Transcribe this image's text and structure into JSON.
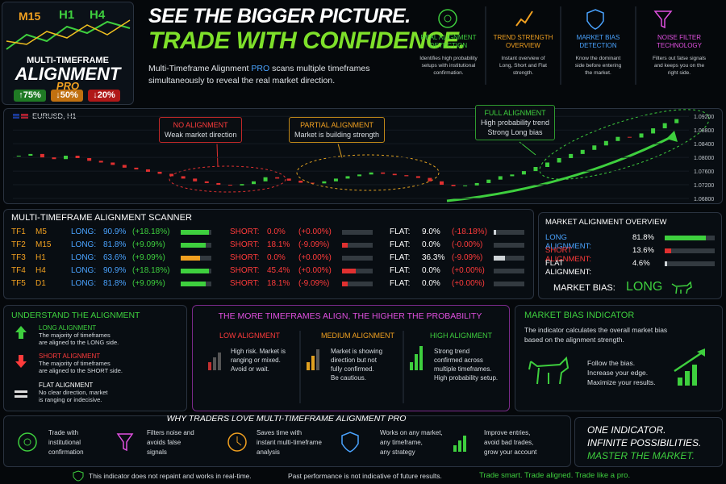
{
  "logo": {
    "timeframes": [
      "M15",
      "H1",
      "H4"
    ],
    "title1": "MULTI-TIMEFRAME",
    "title2": "ALIGNMENT",
    "title3": "PRO",
    "stats": [
      "75%",
      "50%",
      "20%"
    ]
  },
  "headline": {
    "line1": "SEE THE BIGGER PICTURE.",
    "line2": "TRADE WITH CONFIDENCE.",
    "desc": [
      [
        "Multi-Timeframe Alignment ",
        "PRO",
        " scans multiple timeframes"
      ],
      "simultaneously to reveal the real market direction."
    ]
  },
  "features": [
    {
      "title": [
        "REAL ALIGNMENT",
        "DETECTION"
      ],
      "text": [
        "Identifies high probability",
        "setups with institutional",
        "confirmation."
      ]
    },
    {
      "title": [
        "TREND STRENGTH",
        "OVERVIEW"
      ],
      "text": [
        "Instant overview of",
        "Long, Short and Flat",
        "strength."
      ]
    },
    {
      "title": [
        "MARKET BIAS",
        "DETECTION"
      ],
      "text": [
        "Know the dominant",
        "side before entering",
        "the market."
      ]
    },
    {
      "title": [
        "NOISE FILTER",
        "TECHNOLOGY"
      ],
      "text": [
        "Filters out false signals",
        "and keeps you on the",
        "right side."
      ]
    }
  ],
  "price_chart": {
    "symbol": "EURUSD, H1",
    "ylim": [
      1.068,
      1.093
    ],
    "yticks": [
      {
        "value": 1.092,
        "label": "1.09200"
      },
      {
        "value": 1.088,
        "label": "1.08800"
      },
      {
        "value": 1.084,
        "label": "1.08400"
      },
      {
        "value": 1.08,
        "label": "1.08000"
      },
      {
        "value": 1.076,
        "label": "1.07600"
      },
      {
        "value": 1.072,
        "label": "1.07200"
      },
      {
        "value": 1.068,
        "label": "1.06800"
      }
    ],
    "closes": [
      1.0805,
      1.081,
      1.08,
      1.0795,
      1.0805,
      1.0798,
      1.079,
      1.0785,
      1.0778,
      1.077,
      1.0765,
      1.0758,
      1.0752,
      1.0745,
      1.0738,
      1.073,
      1.0725,
      1.072,
      1.0718,
      1.0722,
      1.073,
      1.0742,
      1.0738,
      1.0732,
      1.0726,
      1.0724,
      1.073,
      1.0738,
      1.0745,
      1.075,
      1.0756,
      1.0752,
      1.0748,
      1.0745,
      1.074,
      1.073,
      1.072,
      1.0716,
      1.0718,
      1.0725,
      1.0735,
      1.0745,
      1.075,
      1.076,
      1.0772,
      1.0785,
      1.0798,
      1.081,
      1.0822,
      1.0835,
      1.0848,
      1.086,
      1.0858,
      1.087,
      1.0885,
      1.09,
      1.0912
    ],
    "annotations": [
      {
        "title": "NO ALIGNMENT",
        "text": [
          "Weak market direction"
        ]
      },
      {
        "title": "PARTIAL ALIGNMENT",
        "text": [
          "Market is building strength"
        ]
      },
      {
        "title": "FULL ALIGNMENT",
        "text": [
          "High probability trend",
          "Strong Long bias"
        ]
      }
    ]
  },
  "scanner": {
    "title": "MULTI-TIMEFRAME ALIGNMENT SCANNER",
    "headers": [
      "LONG:",
      "SHORT:",
      "FLAT:"
    ],
    "rows": [
      [
        "TF1",
        "M5",
        "90.9%",
        "(+18.18%)",
        "0.0%",
        "(+0.00%)",
        "9.0%",
        "(-18.18%)"
      ],
      [
        "TF2",
        "M15",
        "81.8%",
        "(+9.09%)",
        "18.1%",
        "(-9.09%)",
        "0.0%",
        "(-0.00%)"
      ],
      [
        "TF3",
        "H1",
        "63.6%",
        "(+9.09%)",
        "0.0%",
        "(+0.00%)",
        "36.3%",
        "(-9.09%)"
      ],
      [
        "TF4",
        "H4",
        "90.9%",
        "(+18.18%)",
        "45.4%",
        "(+0.00%)",
        "0.0%",
        "(+0.00%)"
      ],
      [
        "TF5",
        "D1",
        "81.8%",
        "(+9.09%)",
        "18.1%",
        "(-9.09%)",
        "0.0%",
        "(+0.00%)"
      ]
    ]
  },
  "overview": {
    "title": "MARKET ALIGNMENT OVERVIEW",
    "rows": [
      [
        "LONG ALIGNMENT:",
        "81.8%"
      ],
      [
        "SHORT ALIGNMENT:",
        "13.6%"
      ],
      [
        "FLAT ALIGNMENT:",
        "4.6%"
      ]
    ],
    "bias_label": "MARKET BIAS:",
    "bias": "LONG"
  },
  "understand": {
    "title": "UNDERSTAND THE ALIGNMENT",
    "items": [
      {
        "title": "LONG ALIGNMENT",
        "text": [
          "The majority of timeframes",
          "are aligned to the LONG side."
        ]
      },
      {
        "title": "SHORT ALIGNMENT",
        "text": [
          "The majority of timeframes",
          "are aligned to the SHORT side."
        ]
      },
      {
        "title": "FLAT ALIGNMENT",
        "text": [
          "No clear direction, market",
          "is ranging or indecisive."
        ]
      }
    ]
  },
  "probability": {
    "title": "THE MORE TIMEFRAMES ALIGN, THE HIGHER THE PROBABILITY",
    "items": [
      {
        "title": "LOW ALIGNMENT",
        "text": [
          "High risk. Market is",
          "ranging or mixed.",
          "Avoid or wait."
        ]
      },
      {
        "title": "MEDIUM ALIGNMENT",
        "text": [
          "Market is showing",
          "direction but not",
          "fully confirmed.",
          "Be cautious."
        ]
      },
      {
        "title": "HIGH ALIGNMENT",
        "text": [
          "Strong trend",
          "confirmed across",
          "multiple timeframes.",
          "High probability setup."
        ]
      }
    ]
  },
  "bias_indicator": {
    "title": "MARKET BIAS INDICATOR",
    "text": [
      "The indicator calculates the overall market bias",
      "based on the alignment strength."
    ],
    "lines": [
      "Follow the bias.",
      "Increase your edge.",
      "Maximize your results."
    ]
  },
  "why": {
    "title": "WHY TRADERS LOVE MULTI-TIMEFRAME ALIGNMENT PRO",
    "items": [
      [
        "Trade with",
        "institutional",
        "confirmation"
      ],
      [
        "Filters noise and",
        "avoids false",
        "signals"
      ],
      [
        "Saves time with",
        "instant multi-timeframe",
        "analysis"
      ],
      [
        "Works on any market,",
        "any timeframe,",
        "any strategy"
      ],
      [
        "Improve entries,",
        "avoid bad trades,",
        "grow your account"
      ]
    ]
  },
  "tagline": [
    "ONE INDICATOR.",
    "INFINITE POSSIBILITIES.",
    "MASTER THE MARKET."
  ],
  "footer": [
    "This indicator does not repaint and works in real-time.",
    "Past performance is not indicative of future results.",
    "Trade smart. Trade aligned. Trade like a pro."
  ]
}
